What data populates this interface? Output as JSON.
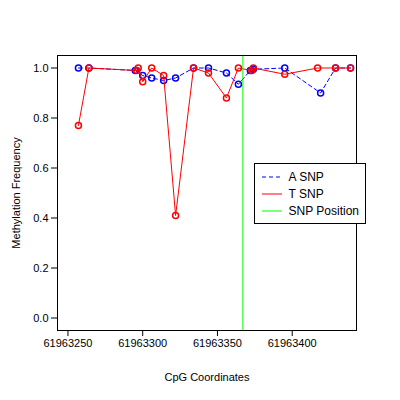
{
  "chart_data": {
    "type": "line",
    "x_label": "CpG Coordinates",
    "y_label": "Methylation Frequency",
    "xlim": [
      61963243,
      61963443
    ],
    "xticks": [
      61963250,
      61963300,
      61963350,
      61963400
    ],
    "ylim": [
      -0.05,
      1.05
    ],
    "yticks": [
      {
        "value": 0,
        "label": "0.0"
      },
      {
        "value": 0.2,
        "label": "0.2"
      },
      {
        "value": 0.4,
        "label": "0.4"
      },
      {
        "value": 0.6,
        "label": "0.6"
      },
      {
        "value": 0.8,
        "label": "0.8"
      },
      {
        "value": 1,
        "label": "1.0"
      }
    ],
    "grid": false,
    "legend": "right",
    "series": [
      {
        "name": "A SNP",
        "color": "#0000ff",
        "marker": "open_circle",
        "line_style": "dashed",
        "x": [
          61963257,
          61963264,
          61963295,
          61963300,
          61963306,
          61963314,
          61963322,
          61963334,
          61963344,
          61963356,
          61963364,
          61963372,
          61963374,
          61963395,
          61963419,
          61963429,
          61963439
        ],
        "values": [
          1.0,
          1.0,
          0.99,
          0.97,
          0.96,
          0.95,
          0.96,
          1.0,
          1.0,
          0.98,
          0.935,
          0.99,
          0.995,
          1.0,
          0.9,
          1.0,
          1.0
        ]
      },
      {
        "name": "T SNP",
        "color": "#ff0000",
        "marker": "open_circle",
        "line_style": "solid",
        "x": [
          61963257,
          61963264,
          61963296,
          61963297,
          61963300,
          61963306,
          61963314,
          61963322,
          61963334,
          61963344,
          61963356,
          61963364,
          61963373,
          61963374,
          61963395,
          61963417,
          61963429,
          61963439
        ],
        "values": [
          0.77,
          1.0,
          0.99,
          1.0,
          0.945,
          1.0,
          0.97,
          0.41,
          1.0,
          0.98,
          0.88,
          1.0,
          0.99,
          1.0,
          0.975,
          1.0,
          1.0,
          1.0
        ]
      },
      {
        "name": "SNP Position",
        "color": "#00ff00",
        "type": "rule",
        "x": [
          61963367
        ]
      }
    ]
  }
}
